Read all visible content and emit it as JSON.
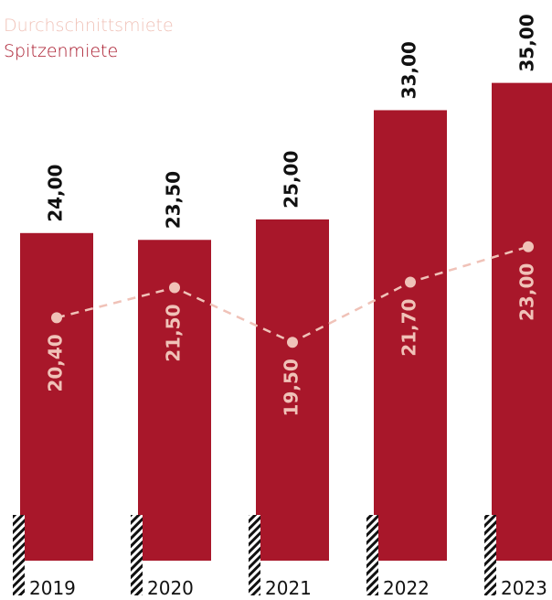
{
  "chart_data": {
    "type": "bar",
    "categories": [
      "2019",
      "2020",
      "2021",
      "2022",
      "2023"
    ],
    "series": [
      {
        "name": "Durchschnittsmiete",
        "type": "line",
        "axis": "y2",
        "color": "#f0c2b8",
        "values": [
          20.4,
          21.5,
          19.5,
          21.7,
          23.0
        ],
        "value_labels": [
          "20,40",
          "21,50",
          "19,50",
          "21,70",
          "23,00"
        ]
      },
      {
        "name": "Spitzenmiete",
        "type": "bar",
        "color": "#a8172a",
        "values": [
          24.0,
          23.5,
          25.0,
          33.0,
          35.0
        ],
        "value_labels": [
          "24,00",
          "23,50",
          "25,00",
          "33,00",
          "35,00"
        ]
      }
    ],
    "ylim": [
      0,
      40
    ],
    "y2lim": [
      11.5,
      31.5
    ]
  }
}
